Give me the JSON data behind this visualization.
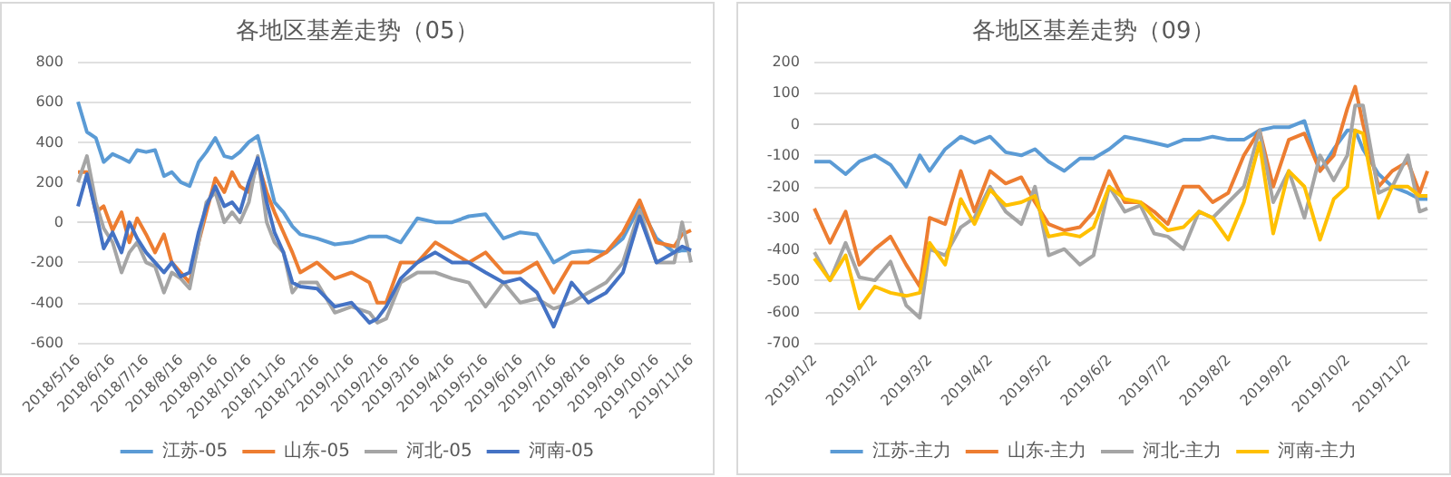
{
  "chart_data": [
    {
      "type": "line",
      "title": "各地区基差走势（05）",
      "x": [
        "2018-05-16",
        "2018-05-24",
        "2018-06-01",
        "2018-06-08",
        "2018-06-16",
        "2018-06-24",
        "2018-07-01",
        "2018-07-08",
        "2018-07-16",
        "2018-07-24",
        "2018-08-01",
        "2018-08-08",
        "2018-08-16",
        "2018-08-24",
        "2018-09-01",
        "2018-09-08",
        "2018-09-16",
        "2018-09-24",
        "2018-10-01",
        "2018-10-08",
        "2018-10-16",
        "2018-10-24",
        "2018-11-01",
        "2018-11-08",
        "2018-11-16",
        "2018-11-24",
        "2018-12-01",
        "2018-12-16",
        "2019-01-01",
        "2019-01-16",
        "2019-02-01",
        "2019-02-08",
        "2019-02-16",
        "2019-03-01",
        "2019-03-16",
        "2019-04-01",
        "2019-04-16",
        "2019-05-01",
        "2019-05-16",
        "2019-06-01",
        "2019-06-16",
        "2019-07-01",
        "2019-07-16",
        "2019-08-01",
        "2019-08-16",
        "2019-09-01",
        "2019-09-16",
        "2019-10-01",
        "2019-10-16",
        "2019-11-01",
        "2019-11-08",
        "2019-11-16"
      ],
      "series": [
        {
          "name": "江苏-05",
          "color": "#5b9bd5",
          "values": [
            600,
            450,
            420,
            300,
            340,
            320,
            300,
            360,
            350,
            360,
            230,
            250,
            200,
            180,
            300,
            350,
            420,
            330,
            320,
            350,
            400,
            430,
            260,
            100,
            50,
            -20,
            -60,
            -80,
            -110,
            -100,
            -70,
            -70,
            -70,
            -100,
            20,
            0,
            0,
            30,
            40,
            -80,
            -50,
            -60,
            -200,
            -150,
            -140,
            -150,
            -80,
            80,
            -80,
            -150,
            -140,
            -140
          ]
        },
        {
          "name": "山东-05",
          "color": "#ed7d31",
          "values": [
            250,
            250,
            50,
            80,
            -40,
            50,
            -100,
            20,
            -60,
            -150,
            -60,
            -200,
            -250,
            -300,
            -100,
            50,
            220,
            150,
            250,
            180,
            150,
            300,
            150,
            50,
            -50,
            -150,
            -250,
            -200,
            -280,
            -250,
            -300,
            -400,
            -400,
            -200,
            -200,
            -100,
            -150,
            -200,
            -150,
            -250,
            -250,
            -200,
            -350,
            -200,
            -200,
            -150,
            -50,
            110,
            -100,
            -120,
            -60,
            -40
          ]
        },
        {
          "name": "河北-05",
          "color": "#a5a5a5",
          "values": [
            200,
            330,
            100,
            -30,
            -100,
            -250,
            -150,
            -100,
            -200,
            -220,
            -350,
            -250,
            -280,
            -330,
            -100,
            100,
            150,
            0,
            50,
            0,
            100,
            330,
            0,
            -100,
            -150,
            -350,
            -300,
            -300,
            -450,
            -420,
            -450,
            -500,
            -480,
            -300,
            -250,
            -250,
            -280,
            -300,
            -420,
            -300,
            -400,
            -380,
            -430,
            -400,
            -350,
            -300,
            -200,
            60,
            -200,
            -200,
            0,
            -200
          ]
        },
        {
          "name": "河南-05",
          "color": "#4472c4",
          "values": [
            80,
            240,
            50,
            -130,
            -50,
            -150,
            0,
            -80,
            -150,
            -200,
            -250,
            -200,
            -270,
            -250,
            -50,
            80,
            180,
            80,
            100,
            50,
            200,
            320,
            100,
            -50,
            -150,
            -300,
            -320,
            -330,
            -420,
            -400,
            -500,
            -480,
            -420,
            -280,
            -200,
            -150,
            -200,
            -200,
            -250,
            -300,
            -280,
            -350,
            -520,
            -300,
            -400,
            -350,
            -250,
            30,
            -200,
            -150,
            -120,
            -140
          ]
        }
      ],
      "xlim": [
        "2018-05-16",
        "2019-11-16"
      ],
      "xticks": [
        {
          "value": "2018-05-16",
          "label": "2018/5/16"
        },
        {
          "value": "2018-06-16",
          "label": "2018/6/16"
        },
        {
          "value": "2018-07-16",
          "label": "2018/7/16"
        },
        {
          "value": "2018-08-16",
          "label": "2018/8/16"
        },
        {
          "value": "2018-09-16",
          "label": "2018/9/16"
        },
        {
          "value": "2018-10-16",
          "label": "2018/10/16"
        },
        {
          "value": "2018-11-16",
          "label": "2018/11/16"
        },
        {
          "value": "2018-12-16",
          "label": "2018/12/16"
        },
        {
          "value": "2019-01-16",
          "label": "2019/1/16"
        },
        {
          "value": "2019-02-16",
          "label": "2019/2/16"
        },
        {
          "value": "2019-03-16",
          "label": "2019/3/16"
        },
        {
          "value": "2019-04-16",
          "label": "2019/4/16"
        },
        {
          "value": "2019-05-16",
          "label": "2019/5/16"
        },
        {
          "value": "2019-06-16",
          "label": "2019/6/16"
        },
        {
          "value": "2019-07-16",
          "label": "2019/7/16"
        },
        {
          "value": "2019-08-16",
          "label": "2019/8/16"
        },
        {
          "value": "2019-09-16",
          "label": "2019/9/16"
        },
        {
          "value": "2019-10-16",
          "label": "2019/10/16"
        },
        {
          "value": "2019-11-16",
          "label": "2019/11/16"
        }
      ],
      "ylim": [
        -600,
        800
      ],
      "yticks": [
        -600,
        -400,
        -200,
        0,
        200,
        400,
        600,
        800
      ],
      "grid": "y",
      "legend": "bottom"
    },
    {
      "type": "line",
      "title": "各地区基差走势（09）",
      "x": [
        "2019-01-02",
        "2019-01-10",
        "2019-01-18",
        "2019-01-25",
        "2019-02-02",
        "2019-02-10",
        "2019-02-18",
        "2019-02-25",
        "2019-03-02",
        "2019-03-10",
        "2019-03-18",
        "2019-03-25",
        "2019-04-02",
        "2019-04-10",
        "2019-04-18",
        "2019-04-25",
        "2019-05-02",
        "2019-05-10",
        "2019-05-18",
        "2019-05-25",
        "2019-06-02",
        "2019-06-10",
        "2019-06-18",
        "2019-06-25",
        "2019-07-02",
        "2019-07-10",
        "2019-07-18",
        "2019-07-25",
        "2019-08-02",
        "2019-08-10",
        "2019-08-18",
        "2019-08-25",
        "2019-09-02",
        "2019-09-10",
        "2019-09-18",
        "2019-09-25",
        "2019-10-02",
        "2019-10-06",
        "2019-10-10",
        "2019-10-18",
        "2019-10-25",
        "2019-11-02",
        "2019-11-08",
        "2019-11-12"
      ],
      "series": [
        {
          "name": "江苏-主力",
          "color": "#5b9bd5",
          "values": [
            -120,
            -120,
            -160,
            -120,
            -100,
            -130,
            -200,
            -100,
            -150,
            -80,
            -40,
            -60,
            -40,
            -90,
            -100,
            -80,
            -120,
            -150,
            -110,
            -110,
            -80,
            -40,
            -50,
            -60,
            -70,
            -50,
            -50,
            -40,
            -50,
            -50,
            -20,
            -10,
            -10,
            10,
            -150,
            -80,
            -20,
            -20,
            -80,
            -160,
            -200,
            -220,
            -240,
            -240
          ]
        },
        {
          "name": "山东-主力",
          "color": "#ed7d31",
          "values": [
            -270,
            -380,
            -280,
            -450,
            -400,
            -360,
            -450,
            -520,
            -300,
            -320,
            -150,
            -280,
            -150,
            -190,
            -170,
            -250,
            -320,
            -340,
            -330,
            -280,
            -150,
            -250,
            -250,
            -280,
            -320,
            -200,
            -200,
            -250,
            -220,
            -100,
            -20,
            -200,
            -50,
            -30,
            -150,
            -100,
            50,
            120,
            0,
            -200,
            -150,
            -120,
            -220,
            -150
          ]
        },
        {
          "name": "河北-主力",
          "color": "#a5a5a5",
          "values": [
            -410,
            -500,
            -380,
            -490,
            -500,
            -440,
            -580,
            -620,
            -400,
            -420,
            -330,
            -300,
            -200,
            -280,
            -320,
            -200,
            -420,
            -400,
            -450,
            -420,
            -200,
            -280,
            -260,
            -350,
            -360,
            -400,
            -280,
            -300,
            -250,
            -200,
            -20,
            -250,
            -150,
            -300,
            -100,
            -180,
            -100,
            60,
            60,
            -220,
            -200,
            -100,
            -280,
            -270
          ]
        },
        {
          "name": "河南-主力",
          "color": "#ffc000",
          "values": [
            -430,
            -500,
            -420,
            -590,
            -520,
            -540,
            -550,
            -540,
            -380,
            -450,
            -240,
            -320,
            -210,
            -260,
            -250,
            -230,
            -360,
            -350,
            -360,
            -330,
            -200,
            -240,
            -250,
            -300,
            -340,
            -330,
            -280,
            -300,
            -370,
            -250,
            -60,
            -350,
            -150,
            -200,
            -370,
            -240,
            -200,
            -20,
            -30,
            -300,
            -200,
            -200,
            -230,
            -230
          ]
        }
      ],
      "xlim": [
        "2019-01-02",
        "2019-11-12"
      ],
      "xticks": [
        {
          "value": "2019-01-02",
          "label": "2019/1/2"
        },
        {
          "value": "2019-02-02",
          "label": "2019/2/2"
        },
        {
          "value": "2019-03-02",
          "label": "2019/3/2"
        },
        {
          "value": "2019-04-02",
          "label": "2019/4/2"
        },
        {
          "value": "2019-05-02",
          "label": "2019/5/2"
        },
        {
          "value": "2019-06-02",
          "label": "2019/6/2"
        },
        {
          "value": "2019-07-02",
          "label": "2019/7/2"
        },
        {
          "value": "2019-08-02",
          "label": "2019/8/2"
        },
        {
          "value": "2019-09-02",
          "label": "2019/9/2"
        },
        {
          "value": "2019-10-02",
          "label": "2019/10/2"
        },
        {
          "value": "2019-11-02",
          "label": "2019/11/2"
        }
      ],
      "ylim": [
        -700,
        200
      ],
      "yticks": [
        -700,
        -600,
        -500,
        -400,
        -300,
        -200,
        -100,
        0,
        100,
        200
      ],
      "grid": "y",
      "legend": "bottom"
    }
  ]
}
